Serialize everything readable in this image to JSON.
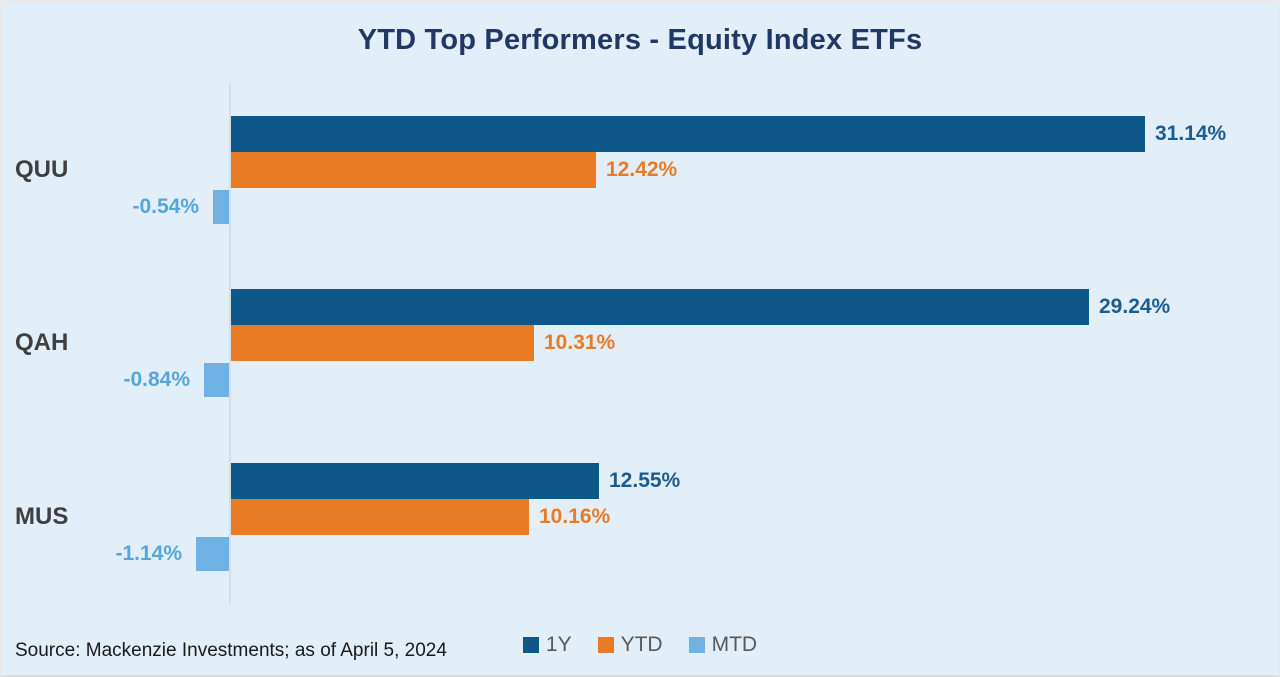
{
  "title": "YTD Top Performers - Equity Index ETFs",
  "source": "Source: Mackenzie Investments; as of April 5, 2024",
  "colors": {
    "background": "#e2eef8",
    "border": "#e9e9e9",
    "title_text": "#1f3864",
    "category_text": "#3f3f3f",
    "legend_text": "#595959",
    "source_text": "#1a1a1a",
    "axis_line": "#d8dde2",
    "series_1y": "#0d5888",
    "series_ytd": "#e87b26",
    "series_mtd": "#6fb1e3"
  },
  "chart_data": {
    "type": "bar",
    "orientation": "horizontal",
    "title": "YTD Top Performers - Equity Index ETFs",
    "categories": [
      "QUU",
      "QAH",
      "MUS"
    ],
    "series": [
      {
        "name": "1Y",
        "color": "#0d5888",
        "label_color": "#1b5d92",
        "values": [
          31.14,
          29.24,
          12.55
        ],
        "labels": [
          "31.14%",
          "29.24%",
          "12.55%"
        ]
      },
      {
        "name": "YTD",
        "color": "#e87b26",
        "label_color": "#e87b26",
        "values": [
          12.42,
          10.31,
          10.16
        ],
        "labels": [
          "12.42%",
          "10.31%",
          "10.16%"
        ]
      },
      {
        "name": "MTD",
        "color": "#6fb1e3",
        "label_color": "#55a6dc",
        "values": [
          -0.54,
          -0.84,
          -1.14
        ],
        "labels": [
          "-0.54%",
          "-0.84%",
          "-1.14%"
        ]
      }
    ],
    "value_suffix": "%",
    "xlim": [
      -2,
      35
    ],
    "grid": false,
    "legend_position": "bottom-center",
    "source_note": "Source: Mackenzie Investments; as of April 5, 2024"
  }
}
